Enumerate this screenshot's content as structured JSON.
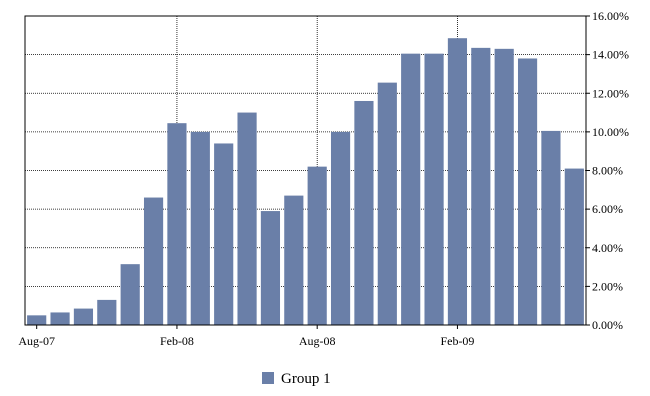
{
  "chart_data": {
    "type": "bar",
    "x_tick_labels": [
      "Aug-07",
      "Feb-08",
      "Aug-08",
      "Feb-09"
    ],
    "categories": [
      "Aug-07",
      "Sep-07",
      "Oct-07",
      "Nov-07",
      "Dec-07",
      "Jan-08",
      "Feb-08",
      "Mar-08",
      "Apr-08",
      "May-08",
      "Jun-08",
      "Jul-08",
      "Aug-08",
      "Sep-08",
      "Oct-08",
      "Nov-08",
      "Dec-08",
      "Jan-09",
      "Feb-09",
      "Mar-09",
      "Apr-09",
      "May-09",
      "Jun-09",
      "Jul-09"
    ],
    "series": [
      {
        "name": "Group 1",
        "color": "#6a7fa8",
        "values": [
          0.5,
          0.65,
          0.85,
          1.3,
          3.15,
          6.6,
          10.45,
          10.0,
          9.4,
          11.0,
          5.9,
          6.7,
          8.2,
          10.0,
          11.6,
          12.55,
          14.05,
          14.05,
          14.85,
          14.35,
          14.3,
          13.8,
          10.05,
          8.1
        ]
      }
    ],
    "y_ticks": [
      "0.00%",
      "2.00%",
      "4.00%",
      "6.00%",
      "8.00%",
      "10.00%",
      "12.00%",
      "14.00%",
      "16.00%"
    ],
    "ylim": [
      0,
      16
    ],
    "y_axis_side": "right",
    "grid": true,
    "legend_position": "bottom-center",
    "title": "",
    "xlabel": "",
    "ylabel": ""
  }
}
